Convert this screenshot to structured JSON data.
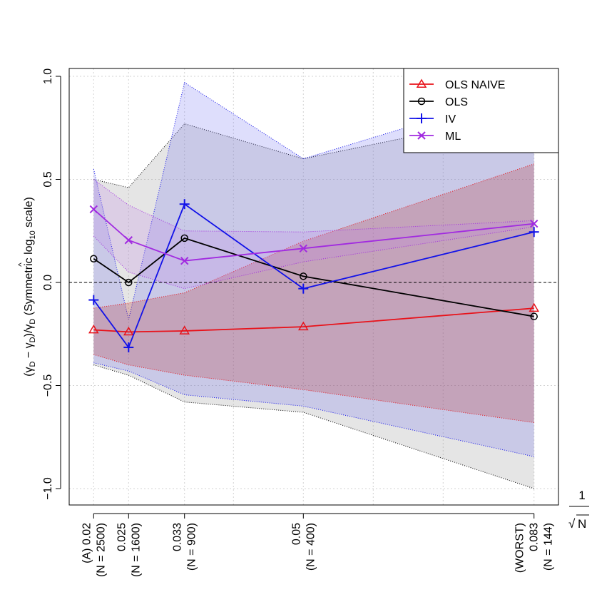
{
  "chart_data": {
    "type": "line",
    "xlim": [
      0.0165,
      0.0865
    ],
    "ylim": [
      -1.08,
      1.0
    ],
    "x": [
      0.02,
      0.025,
      0.033,
      0.05,
      0.083
    ],
    "x_tick_labels": [
      [
        "(A) 0.02",
        "(N = 2500)"
      ],
      [
        "0.025",
        "(N = 1600)"
      ],
      [
        "0.033",
        "(N = 900)"
      ],
      [
        "0.05",
        "(N = 400)"
      ],
      [
        "(WORST)",
        "0.083",
        "(N = 144)"
      ]
    ],
    "y_ticks": [
      -1.0,
      -0.5,
      0.0,
      0.5,
      1.0
    ],
    "y_tick_labels": [
      "−1.0",
      "−0.5",
      "0.0",
      "0.5",
      "1.0"
    ],
    "ylabel": "(γ̂D − γD)/γD (Symmetric log10 scale)",
    "ylabel_parts": {
      "open": "(",
      "hat": "^",
      "gamma1": "γ",
      "sub1": "D",
      "minus": " − γ",
      "sub2": "D",
      "close": ")/γ",
      "sub3": "D",
      "rest": " (Symmetric log",
      "sub4": "10",
      "end": " scale)"
    },
    "xlabel": {
      "numerator": "1",
      "radical": "√",
      "denominator": "N"
    },
    "grid": true,
    "reference_line": 0.0,
    "legend_position": "top-right",
    "series": [
      {
        "name": "OLS NAIVE",
        "marker": "triangle",
        "color": "#e8121a",
        "fill": "#b31a1a",
        "values": [
          -0.23,
          -0.24,
          -0.235,
          -0.215,
          -0.125
        ],
        "band_upper": [
          -0.125,
          -0.1,
          -0.05,
          0.2,
          0.575
        ],
        "band_lower": [
          -0.35,
          -0.4,
          -0.45,
          -0.52,
          -0.68
        ]
      },
      {
        "name": "OLS",
        "marker": "circle",
        "color": "#000000",
        "fill": "#999999",
        "values": [
          0.115,
          0.0,
          0.215,
          0.03,
          -0.165
        ],
        "band_upper": [
          0.5,
          0.46,
          0.77,
          0.6,
          0.83
        ],
        "band_lower": [
          -0.4,
          -0.45,
          -0.58,
          -0.63,
          -1.0
        ]
      },
      {
        "name": "IV",
        "marker": "plus",
        "color": "#1212e8",
        "fill": "#6a6af0",
        "values": [
          -0.085,
          -0.315,
          0.38,
          -0.03,
          0.245
        ],
        "band_upper": [
          0.55,
          -0.18,
          0.97,
          0.6,
          0.94
        ],
        "band_lower": [
          -0.39,
          -0.43,
          -0.545,
          -0.6,
          -0.845
        ]
      },
      {
        "name": "ML",
        "marker": "x",
        "color": "#a12ae0",
        "fill": "#c080e8",
        "values": [
          0.355,
          0.205,
          0.105,
          0.165,
          0.285
        ],
        "band_upper": [
          0.5,
          0.375,
          0.25,
          0.245,
          0.3
        ],
        "band_lower": [
          0.225,
          0.05,
          -0.03,
          0.1,
          0.27
        ]
      }
    ]
  }
}
